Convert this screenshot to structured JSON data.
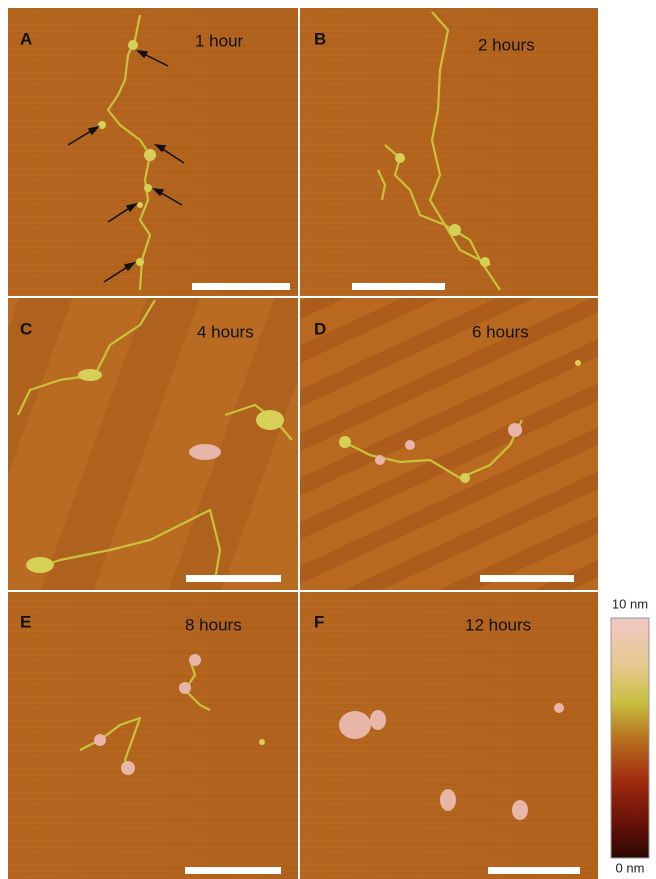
{
  "panels": [
    {
      "letter": "A",
      "label": "1 hour"
    },
    {
      "letter": "B",
      "label": "2 hours"
    },
    {
      "letter": "C",
      "label": "4 hours"
    },
    {
      "letter": "D",
      "label": "6 hours"
    },
    {
      "letter": "E",
      "label": "8 hours"
    },
    {
      "letter": "F",
      "label": "12 hours"
    }
  ],
  "colorbar": {
    "max_label": "10 nm",
    "min_label": "0 nm"
  }
}
